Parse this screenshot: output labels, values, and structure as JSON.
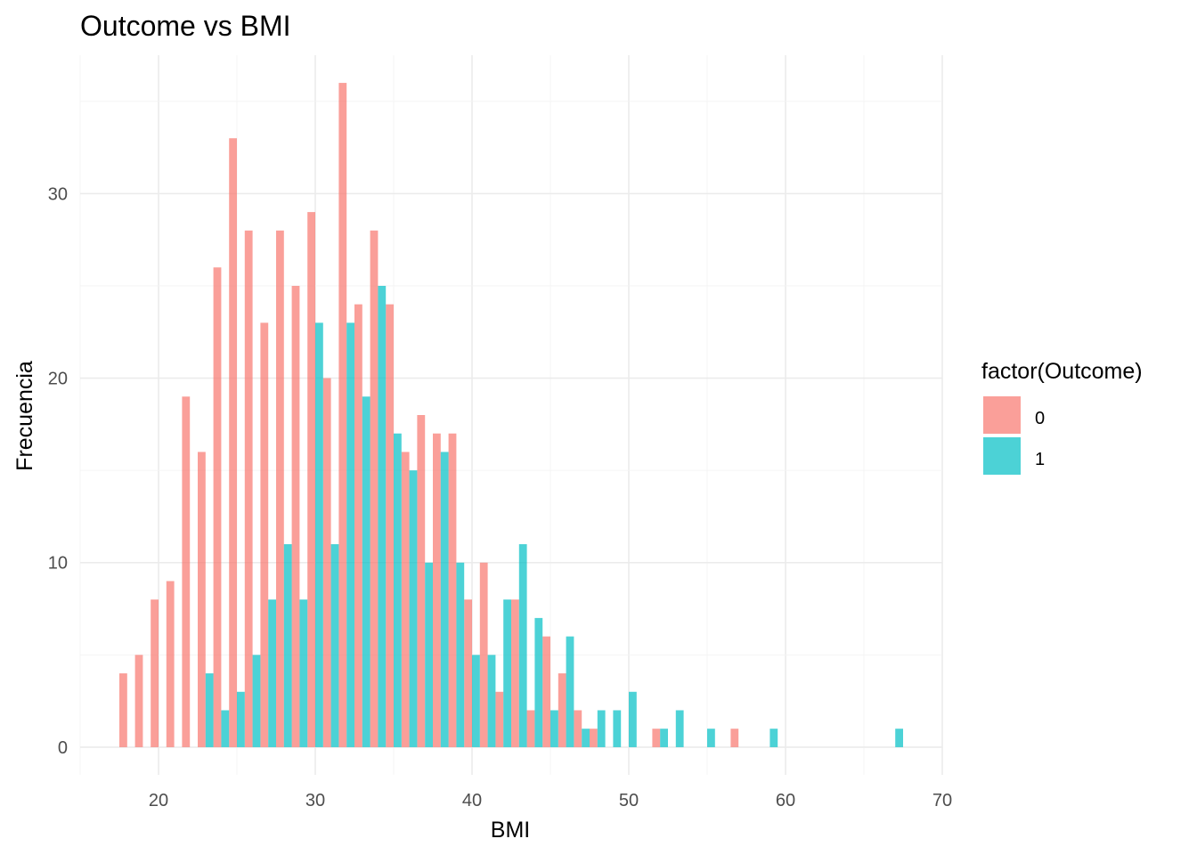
{
  "chart_data": {
    "type": "bar",
    "title": "Outcome vs BMI",
    "xlabel": "BMI",
    "ylabel": "Frecuencia",
    "xlim": [
      15,
      70
    ],
    "ylim": [
      -1.5,
      37.5
    ],
    "x_ticks": [
      20,
      30,
      40,
      50,
      60,
      70
    ],
    "y_ticks": [
      0,
      10,
      20,
      30
    ],
    "bin_width": 1,
    "grid": true,
    "legend": {
      "title": "factor(Outcome)",
      "position": "right",
      "entries": [
        "0",
        "1"
      ]
    },
    "series": [
      {
        "name": "0",
        "color": "#F8766D",
        "points": [
          {
            "x": 18,
            "y": 4
          },
          {
            "x": 19,
            "y": 5
          },
          {
            "x": 20,
            "y": 8
          },
          {
            "x": 21,
            "y": 9
          },
          {
            "x": 22,
            "y": 19
          },
          {
            "x": 23,
            "y": 16
          },
          {
            "x": 24,
            "y": 26
          },
          {
            "x": 25,
            "y": 33
          },
          {
            "x": 26,
            "y": 28
          },
          {
            "x": 27,
            "y": 23
          },
          {
            "x": 28,
            "y": 28
          },
          {
            "x": 29,
            "y": 25
          },
          {
            "x": 30,
            "y": 29
          },
          {
            "x": 31,
            "y": 20
          },
          {
            "x": 32,
            "y": 36
          },
          {
            "x": 33,
            "y": 24
          },
          {
            "x": 34,
            "y": 28
          },
          {
            "x": 35,
            "y": 24
          },
          {
            "x": 36,
            "y": 16
          },
          {
            "x": 37,
            "y": 18
          },
          {
            "x": 38,
            "y": 17
          },
          {
            "x": 39,
            "y": 17
          },
          {
            "x": 40,
            "y": 8
          },
          {
            "x": 41,
            "y": 10
          },
          {
            "x": 42,
            "y": 3
          },
          {
            "x": 43,
            "y": 8
          },
          {
            "x": 44,
            "y": 2
          },
          {
            "x": 45,
            "y": 6
          },
          {
            "x": 46,
            "y": 4
          },
          {
            "x": 47,
            "y": 2
          },
          {
            "x": 48,
            "y": 1
          },
          {
            "x": 52,
            "y": 1
          },
          {
            "x": 57,
            "y": 1
          }
        ]
      },
      {
        "name": "1",
        "color": "#00BFC4",
        "points": [
          {
            "x": 23,
            "y": 4
          },
          {
            "x": 24,
            "y": 2
          },
          {
            "x": 25,
            "y": 3
          },
          {
            "x": 26,
            "y": 5
          },
          {
            "x": 27,
            "y": 8
          },
          {
            "x": 28,
            "y": 11
          },
          {
            "x": 29,
            "y": 8
          },
          {
            "x": 30,
            "y": 23
          },
          {
            "x": 31,
            "y": 11
          },
          {
            "x": 32,
            "y": 23
          },
          {
            "x": 33,
            "y": 19
          },
          {
            "x": 34,
            "y": 25
          },
          {
            "x": 35,
            "y": 17
          },
          {
            "x": 36,
            "y": 15
          },
          {
            "x": 37,
            "y": 10
          },
          {
            "x": 38,
            "y": 16
          },
          {
            "x": 39,
            "y": 10
          },
          {
            "x": 40,
            "y": 5
          },
          {
            "x": 41,
            "y": 5
          },
          {
            "x": 42,
            "y": 8
          },
          {
            "x": 43,
            "y": 11
          },
          {
            "x": 44,
            "y": 7
          },
          {
            "x": 45,
            "y": 2
          },
          {
            "x": 46,
            "y": 6
          },
          {
            "x": 47,
            "y": 1
          },
          {
            "x": 48,
            "y": 2
          },
          {
            "x": 49,
            "y": 2
          },
          {
            "x": 50,
            "y": 3
          },
          {
            "x": 52,
            "y": 1
          },
          {
            "x": 53,
            "y": 2
          },
          {
            "x": 55,
            "y": 1
          },
          {
            "x": 59,
            "y": 1
          },
          {
            "x": 67,
            "y": 1
          }
        ]
      }
    ]
  }
}
